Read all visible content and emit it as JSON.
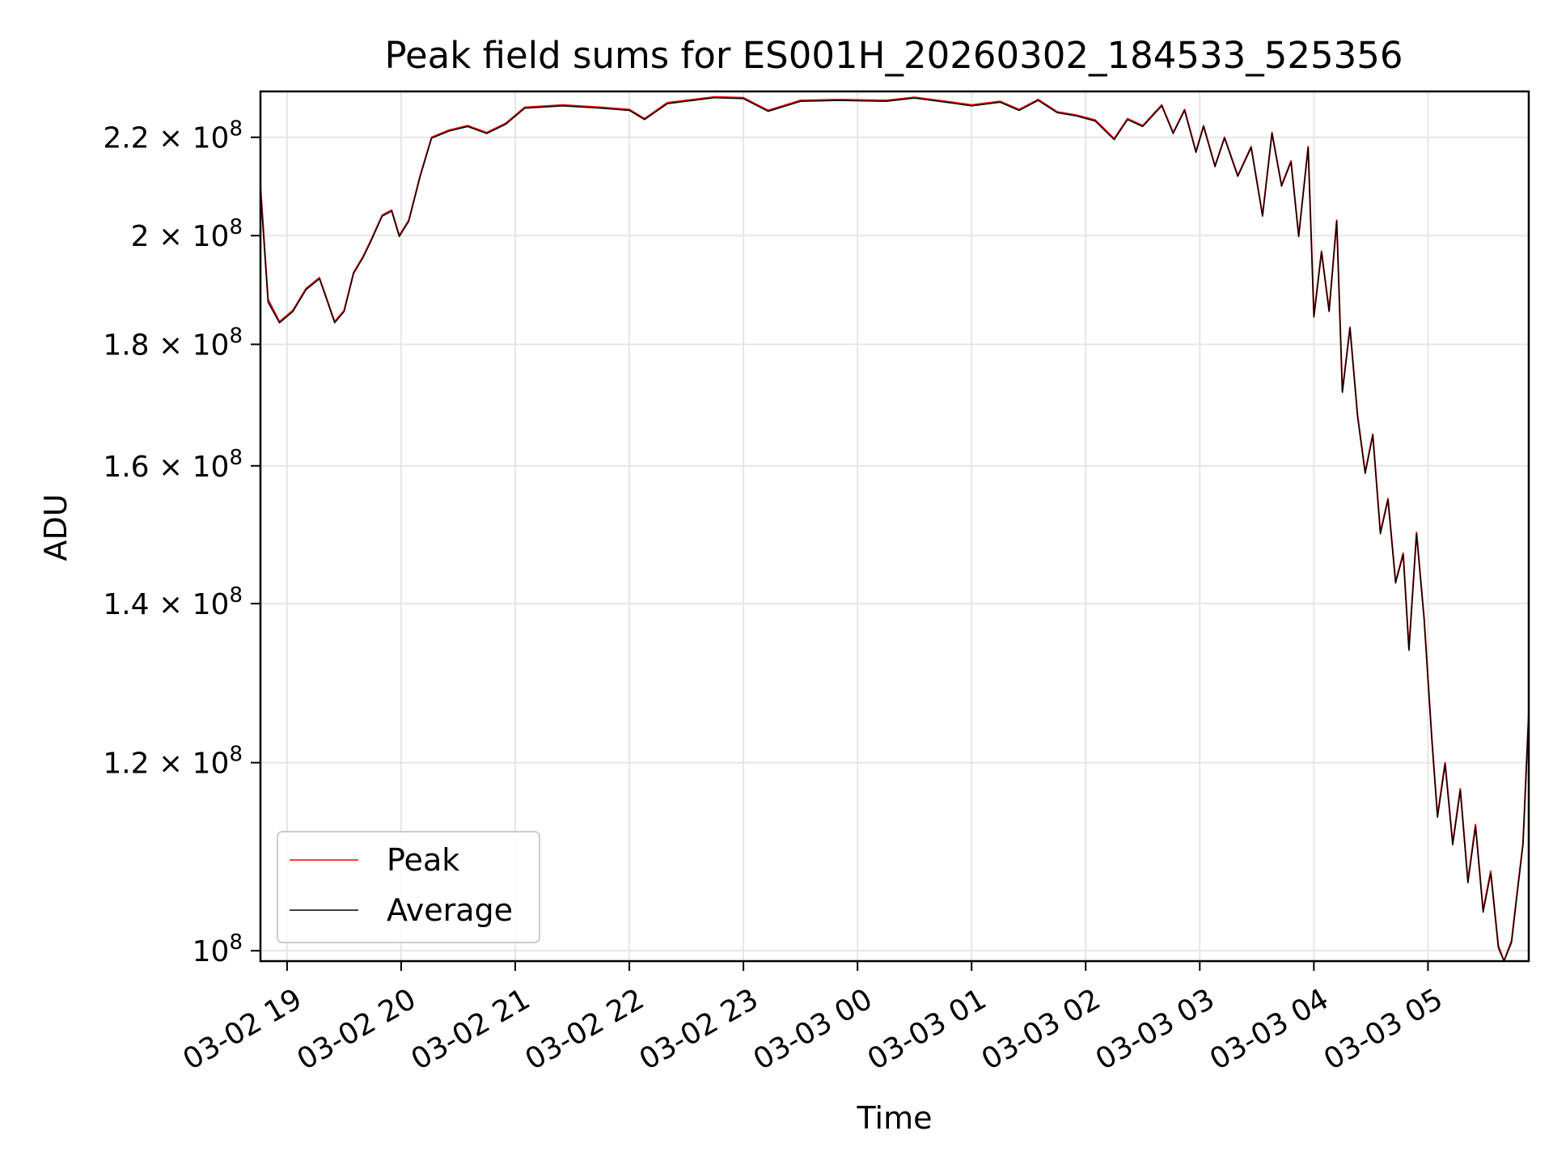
{
  "chart_data": {
    "type": "line",
    "title": "Peak field sums for ES001H_20260302_184533_525356",
    "xlabel": "Time",
    "ylabel": "ADU",
    "yscale": "log",
    "grid": true,
    "legend_placement": "lower-left",
    "xlim": [
      "2026-03-02 18:46",
      "2026-03-03 05:53"
    ],
    "ylim": [
      99000000,
      230000000
    ],
    "x_ticks": [
      {
        "value": "2026-03-02 19:00",
        "label": "03-02 19"
      },
      {
        "value": "2026-03-02 20:00",
        "label": "03-02 20"
      },
      {
        "value": "2026-03-02 21:00",
        "label": "03-02 21"
      },
      {
        "value": "2026-03-02 22:00",
        "label": "03-02 22"
      },
      {
        "value": "2026-03-02 23:00",
        "label": "03-02 23"
      },
      {
        "value": "2026-03-03 00:00",
        "label": "03-03 00"
      },
      {
        "value": "2026-03-03 01:00",
        "label": "03-03 01"
      },
      {
        "value": "2026-03-03 02:00",
        "label": "03-03 02"
      },
      {
        "value": "2026-03-03 03:00",
        "label": "03-03 03"
      },
      {
        "value": "2026-03-03 04:00",
        "label": "03-03 04"
      },
      {
        "value": "2026-03-03 05:00",
        "label": "03-03 05"
      }
    ],
    "y_ticks": [
      {
        "value": 100000000,
        "mantissa": "",
        "exponent": "8"
      },
      {
        "value": 120000000,
        "mantissa": "1.2",
        "exponent": "8"
      },
      {
        "value": 140000000,
        "mantissa": "1.4",
        "exponent": "8"
      },
      {
        "value": 160000000,
        "mantissa": "1.6",
        "exponent": "8"
      },
      {
        "value": 180000000,
        "mantissa": "1.8",
        "exponent": "8"
      },
      {
        "value": 200000000,
        "mantissa": "2",
        "exponent": "8"
      },
      {
        "value": 220000000,
        "mantissa": "2.2",
        "exponent": "8"
      }
    ],
    "series": [
      {
        "name": "Peak",
        "color": "#ff0000",
        "points": [
          [
            "2026-03-02 18:46",
            210000000
          ],
          [
            "2026-03-02 18:50",
            188000000
          ],
          [
            "2026-03-02 18:56",
            184000000
          ],
          [
            "2026-03-02 19:03",
            186000000
          ],
          [
            "2026-03-02 19:10",
            190000000
          ],
          [
            "2026-03-02 19:17",
            192000000
          ],
          [
            "2026-03-02 19:21",
            188000000
          ],
          [
            "2026-03-02 19:25",
            184000000
          ],
          [
            "2026-03-02 19:30",
            186000000
          ],
          [
            "2026-03-02 19:35",
            193000000
          ],
          [
            "2026-03-02 19:40",
            196000000
          ],
          [
            "2026-03-02 19:44",
            199000000
          ],
          [
            "2026-03-02 19:50",
            204000000
          ],
          [
            "2026-03-02 19:55",
            205000000
          ],
          [
            "2026-03-02 19:59",
            200000000
          ],
          [
            "2026-03-02 20:04",
            203000000
          ],
          [
            "2026-03-02 20:10",
            212000000
          ],
          [
            "2026-03-02 20:16",
            220000000
          ],
          [
            "2026-03-02 20:25",
            221500000
          ],
          [
            "2026-03-02 20:35",
            222500000
          ],
          [
            "2026-03-02 20:45",
            221000000
          ],
          [
            "2026-03-02 20:55",
            223000000
          ],
          [
            "2026-03-02 21:05",
            226500000
          ],
          [
            "2026-03-02 21:25",
            227000000
          ],
          [
            "2026-03-02 21:45",
            226500000
          ],
          [
            "2026-03-02 22:00",
            226000000
          ],
          [
            "2026-03-02 22:08",
            224000000
          ],
          [
            "2026-03-02 22:20",
            227500000
          ],
          [
            "2026-03-02 22:45",
            228800000
          ],
          [
            "2026-03-02 23:00",
            228600000
          ],
          [
            "2026-03-02 23:13",
            225800000
          ],
          [
            "2026-03-02 23:30",
            228000000
          ],
          [
            "2026-03-02 23:50",
            228200000
          ],
          [
            "2026-03-03 00:15",
            228000000
          ],
          [
            "2026-03-03 00:30",
            228700000
          ],
          [
            "2026-03-03 00:50",
            227600000
          ],
          [
            "2026-03-03 01:00",
            227000000
          ],
          [
            "2026-03-03 01:15",
            227800000
          ],
          [
            "2026-03-03 01:25",
            226000000
          ],
          [
            "2026-03-03 01:35",
            228200000
          ],
          [
            "2026-03-03 01:45",
            225500000
          ],
          [
            "2026-03-03 01:55",
            224800000
          ],
          [
            "2026-03-03 02:05",
            223700000
          ],
          [
            "2026-03-03 02:15",
            219700000
          ],
          [
            "2026-03-03 02:22",
            224000000
          ],
          [
            "2026-03-03 02:30",
            222500000
          ],
          [
            "2026-03-03 02:40",
            227000000
          ],
          [
            "2026-03-03 02:46",
            221000000
          ],
          [
            "2026-03-03 02:52",
            226000000
          ],
          [
            "2026-03-03 02:58",
            217000000
          ],
          [
            "2026-03-03 03:02",
            222500000
          ],
          [
            "2026-03-03 03:08",
            214000000
          ],
          [
            "2026-03-03 03:13",
            220000000
          ],
          [
            "2026-03-03 03:20",
            212000000
          ],
          [
            "2026-03-03 03:27",
            218000000
          ],
          [
            "2026-03-03 03:33",
            204000000
          ],
          [
            "2026-03-03 03:38",
            221000000
          ],
          [
            "2026-03-03 03:43",
            210000000
          ],
          [
            "2026-03-03 03:48",
            215000000
          ],
          [
            "2026-03-03 03:52",
            200000000
          ],
          [
            "2026-03-03 03:57",
            218000000
          ],
          [
            "2026-03-03 04:00",
            185000000
          ],
          [
            "2026-03-03 04:04",
            197000000
          ],
          [
            "2026-03-03 04:08",
            186000000
          ],
          [
            "2026-03-03 04:12",
            203000000
          ],
          [
            "2026-03-03 04:15",
            172000000
          ],
          [
            "2026-03-03 04:19",
            183000000
          ],
          [
            "2026-03-03 04:23",
            168000000
          ],
          [
            "2026-03-03 04:27",
            159000000
          ],
          [
            "2026-03-03 04:31",
            165000000
          ],
          [
            "2026-03-03 04:35",
            150000000
          ],
          [
            "2026-03-03 04:39",
            155000000
          ],
          [
            "2026-03-03 04:43",
            143000000
          ],
          [
            "2026-03-03 04:47",
            147000000
          ],
          [
            "2026-03-03 04:50",
            134000000
          ],
          [
            "2026-03-03 04:54",
            150000000
          ],
          [
            "2026-03-03 04:58",
            138000000
          ],
          [
            "2026-03-03 05:02",
            123000000
          ],
          [
            "2026-03-03 05:05",
            114000000
          ],
          [
            "2026-03-03 05:09",
            120000000
          ],
          [
            "2026-03-03 05:13",
            111000000
          ],
          [
            "2026-03-03 05:17",
            117000000
          ],
          [
            "2026-03-03 05:21",
            107000000
          ],
          [
            "2026-03-03 05:25",
            113000000
          ],
          [
            "2026-03-03 05:29",
            104000000
          ],
          [
            "2026-03-03 05:33",
            108000000
          ],
          [
            "2026-03-03 05:37",
            100500000
          ],
          [
            "2026-03-03 05:40",
            99000000
          ],
          [
            "2026-03-03 05:44",
            101000000
          ],
          [
            "2026-03-03 05:47",
            106000000
          ],
          [
            "2026-03-03 05:50",
            111000000
          ],
          [
            "2026-03-03 05:53",
            126000000
          ]
        ]
      },
      {
        "name": "Average",
        "color": "#000000",
        "points": [
          [
            "2026-03-02 18:46",
            209000000
          ],
          [
            "2026-03-02 18:50",
            187500000
          ],
          [
            "2026-03-02 18:56",
            183800000
          ],
          [
            "2026-03-02 19:03",
            185800000
          ],
          [
            "2026-03-02 19:10",
            189800000
          ],
          [
            "2026-03-02 19:17",
            191800000
          ],
          [
            "2026-03-02 19:21",
            187800000
          ],
          [
            "2026-03-02 19:25",
            183800000
          ],
          [
            "2026-03-02 19:30",
            185800000
          ],
          [
            "2026-03-02 19:35",
            192800000
          ],
          [
            "2026-03-02 19:40",
            195800000
          ],
          [
            "2026-03-02 19:44",
            198800000
          ],
          [
            "2026-03-02 19:50",
            203800000
          ],
          [
            "2026-03-02 19:55",
            204800000
          ],
          [
            "2026-03-02 19:59",
            199800000
          ],
          [
            "2026-03-02 20:04",
            202800000
          ],
          [
            "2026-03-02 20:10",
            211800000
          ],
          [
            "2026-03-02 20:16",
            219800000
          ],
          [
            "2026-03-02 20:25",
            221300000
          ],
          [
            "2026-03-02 20:35",
            222300000
          ],
          [
            "2026-03-02 20:45",
            220800000
          ],
          [
            "2026-03-02 20:55",
            222800000
          ],
          [
            "2026-03-02 21:05",
            226300000
          ],
          [
            "2026-03-02 21:25",
            226800000
          ],
          [
            "2026-03-02 21:45",
            226300000
          ],
          [
            "2026-03-02 22:00",
            225800000
          ],
          [
            "2026-03-02 22:08",
            223800000
          ],
          [
            "2026-03-02 22:20",
            227300000
          ],
          [
            "2026-03-02 22:45",
            228600000
          ],
          [
            "2026-03-02 23:00",
            228400000
          ],
          [
            "2026-03-02 23:13",
            225600000
          ],
          [
            "2026-03-02 23:30",
            227800000
          ],
          [
            "2026-03-02 23:50",
            228000000
          ],
          [
            "2026-03-03 00:15",
            227800000
          ],
          [
            "2026-03-03 00:30",
            228500000
          ],
          [
            "2026-03-03 00:50",
            227400000
          ],
          [
            "2026-03-03 01:00",
            226800000
          ],
          [
            "2026-03-03 01:15",
            227600000
          ],
          [
            "2026-03-03 01:25",
            225800000
          ],
          [
            "2026-03-03 01:35",
            228000000
          ],
          [
            "2026-03-03 01:45",
            225300000
          ],
          [
            "2026-03-03 01:55",
            224600000
          ],
          [
            "2026-03-03 02:05",
            223500000
          ],
          [
            "2026-03-03 02:15",
            219500000
          ],
          [
            "2026-03-03 02:22",
            223800000
          ],
          [
            "2026-03-03 02:30",
            222300000
          ],
          [
            "2026-03-03 02:40",
            226800000
          ],
          [
            "2026-03-03 02:46",
            220800000
          ],
          [
            "2026-03-03 02:52",
            225800000
          ],
          [
            "2026-03-03 02:58",
            216800000
          ],
          [
            "2026-03-03 03:02",
            222300000
          ],
          [
            "2026-03-03 03:08",
            213800000
          ],
          [
            "2026-03-03 03:13",
            219800000
          ],
          [
            "2026-03-03 03:20",
            211800000
          ],
          [
            "2026-03-03 03:27",
            217800000
          ],
          [
            "2026-03-03 03:33",
            203800000
          ],
          [
            "2026-03-03 03:38",
            220800000
          ],
          [
            "2026-03-03 03:43",
            209800000
          ],
          [
            "2026-03-03 03:48",
            214800000
          ],
          [
            "2026-03-03 03:52",
            199800000
          ],
          [
            "2026-03-03 03:57",
            217800000
          ],
          [
            "2026-03-03 04:00",
            184800000
          ],
          [
            "2026-03-03 04:04",
            196800000
          ],
          [
            "2026-03-03 04:08",
            185800000
          ],
          [
            "2026-03-03 04:12",
            202800000
          ],
          [
            "2026-03-03 04:15",
            171800000
          ],
          [
            "2026-03-03 04:19",
            182800000
          ],
          [
            "2026-03-03 04:23",
            167800000
          ],
          [
            "2026-03-03 04:27",
            158800000
          ],
          [
            "2026-03-03 04:31",
            164800000
          ],
          [
            "2026-03-03 04:35",
            149800000
          ],
          [
            "2026-03-03 04:39",
            154800000
          ],
          [
            "2026-03-03 04:43",
            142800000
          ],
          [
            "2026-03-03 04:47",
            146800000
          ],
          [
            "2026-03-03 04:50",
            133800000
          ],
          [
            "2026-03-03 04:54",
            149800000
          ],
          [
            "2026-03-03 04:58",
            137800000
          ],
          [
            "2026-03-03 05:02",
            122800000
          ],
          [
            "2026-03-03 05:05",
            113800000
          ],
          [
            "2026-03-03 05:09",
            119800000
          ],
          [
            "2026-03-03 05:13",
            110800000
          ],
          [
            "2026-03-03 05:17",
            116800000
          ],
          [
            "2026-03-03 05:21",
            106800000
          ],
          [
            "2026-03-03 05:25",
            112800000
          ],
          [
            "2026-03-03 05:29",
            103800000
          ],
          [
            "2026-03-03 05:33",
            107800000
          ],
          [
            "2026-03-03 05:37",
            100300000
          ],
          [
            "2026-03-03 05:40",
            99000000
          ],
          [
            "2026-03-03 05:44",
            100800000
          ],
          [
            "2026-03-03 05:47",
            105800000
          ],
          [
            "2026-03-03 05:50",
            110800000
          ],
          [
            "2026-03-03 05:53",
            125800000
          ]
        ]
      }
    ]
  }
}
